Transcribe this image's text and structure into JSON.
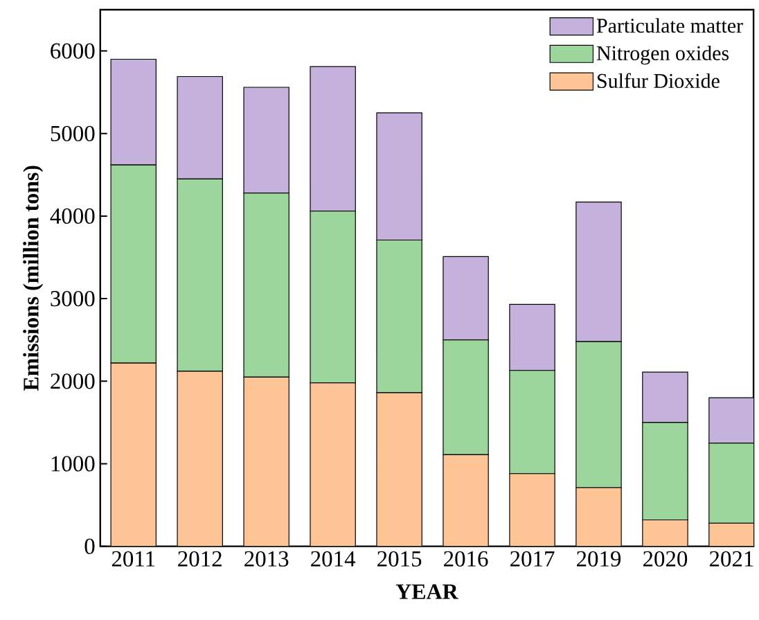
{
  "chart_data": {
    "type": "bar",
    "stacked": true,
    "xlabel": "YEAR",
    "ylabel": "Emissions (million tons)",
    "categories": [
      "2011",
      "2012",
      "2013",
      "2014",
      "2015",
      "2016",
      "2017",
      "2019",
      "2020",
      "2021"
    ],
    "series": [
      {
        "name": "Sulfur Dioxide",
        "color": "#fdc596",
        "values": [
          2220,
          2120,
          2050,
          1980,
          1860,
          1110,
          880,
          710,
          320,
          280
        ]
      },
      {
        "name": "Nitrogen oxides",
        "color": "#9dd69d",
        "values": [
          2400,
          2330,
          2230,
          2080,
          1850,
          1390,
          1250,
          1770,
          1180,
          970
        ]
      },
      {
        "name": "Particulate matter",
        "color": "#c5b2dc",
        "values": [
          1280,
          1240,
          1280,
          1750,
          1540,
          1010,
          800,
          1690,
          610,
          550
        ]
      }
    ],
    "ylim": [
      0,
      6500
    ],
    "yticks": [
      0,
      1000,
      2000,
      3000,
      4000,
      5000,
      6000
    ],
    "grid": false,
    "legend": "top right"
  }
}
